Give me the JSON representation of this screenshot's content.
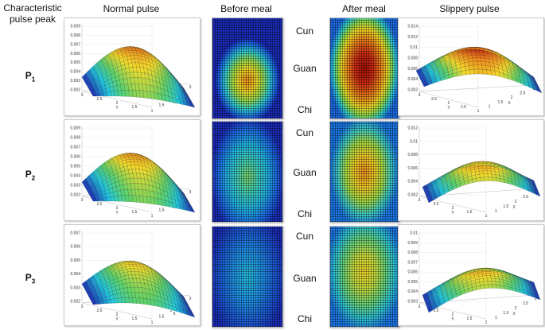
{
  "headers": {
    "left": "Characteristic\npulse peak",
    "normal": "Normal pulse",
    "before": "Before meal",
    "after": "After meal",
    "slippery": "Slippery pulse"
  },
  "rows": [
    {
      "label": "P",
      "sub": "1",
      "positions": [
        "Cun",
        "Guan",
        "Chi"
      ],
      "normal_ticks": [
        "0.009",
        "0.008",
        "0.007",
        "0.006",
        "0.005",
        "0.004",
        "0.003",
        "0.002"
      ],
      "normal_xticks": [
        "3",
        "2.5",
        "2",
        "1.5",
        "1",
        "1.5",
        "2",
        "2.5",
        "3"
      ],
      "slip_ticks": [
        "0.014",
        "0.012",
        "0.01",
        "0.008",
        "0.006",
        "0.004",
        "0.002"
      ],
      "slip_xticks": [
        "3",
        "2.5",
        "2",
        "1.5",
        "1",
        "1",
        "1.5",
        "2",
        "2.5",
        "3"
      ]
    },
    {
      "label": "P",
      "sub": "2",
      "positions": [
        "Cun",
        "Guan",
        "Chi"
      ],
      "normal_ticks": [
        "0.009",
        "0.008",
        "0.007",
        "0.006",
        "0.005",
        "0.004",
        "0.003",
        "0.002"
      ],
      "normal_xticks": [
        "3",
        "2.5",
        "2",
        "1.5",
        "1",
        "1.5",
        "2",
        "2.5",
        "3"
      ],
      "slip_ticks": [
        "0.012",
        "0.01",
        "0.008",
        "0.006",
        "0.004",
        "0.002"
      ],
      "slip_xticks": [
        "3",
        "2.5",
        "2",
        "1.5",
        "1",
        "1",
        "1.5",
        "2",
        "2.5",
        "3"
      ]
    },
    {
      "label": "P",
      "sub": "3",
      "positions": [
        "Cun",
        "Guan",
        "Chi"
      ],
      "normal_ticks": [
        "0.007",
        "0.006",
        "0.005",
        "0.004",
        "0.003",
        "0.002"
      ],
      "normal_xticks": [
        "3",
        "2.5",
        "2",
        "1.5",
        "1",
        "1.5",
        "2",
        "2.5",
        "3"
      ],
      "slip_ticks": [
        "0.01",
        "0.009",
        "0.008",
        "0.007",
        "0.006",
        "0.005",
        "0.004",
        "0.003"
      ],
      "slip_xticks": [
        "3",
        "2.5",
        "2",
        "1.5",
        "1",
        "1",
        "1.5",
        "2",
        "2.5",
        "3"
      ]
    }
  ],
  "axis_letters": {
    "x": "X",
    "y": "Y"
  },
  "colors": {
    "deep_blue": "#1a2bb8",
    "cyan": "#1fc8e0",
    "green": "#5fd36a",
    "yellow": "#f4dc2a",
    "orange": "#f08a1c",
    "red": "#c01a10"
  }
}
